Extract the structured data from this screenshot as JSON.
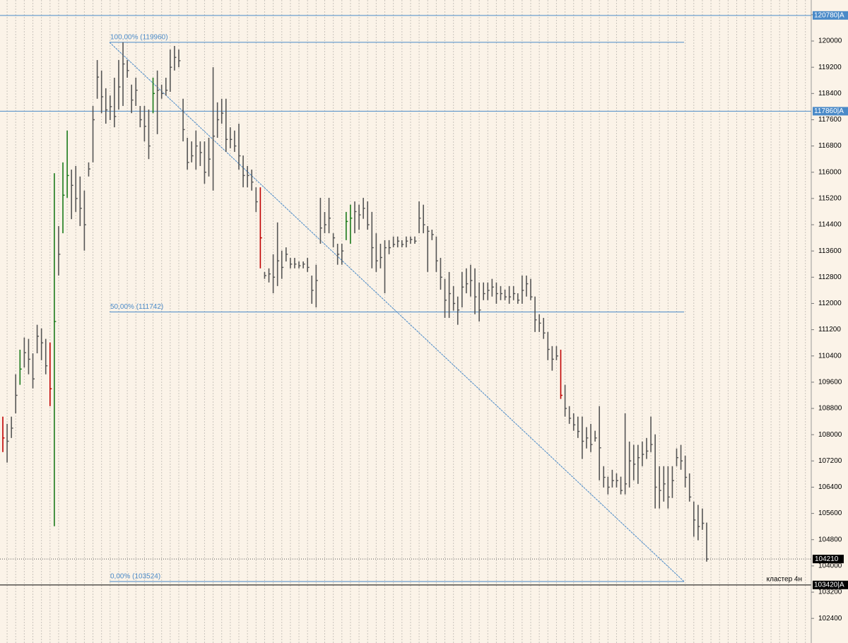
{
  "chart_data": {
    "type": "hlc",
    "ylim": [
      101650,
      121250
    ],
    "yticks": [
      102400,
      103200,
      104000,
      104800,
      105600,
      106400,
      107200,
      108000,
      108800,
      109600,
      110400,
      111200,
      112000,
      112800,
      113600,
      114400,
      115200,
      116000,
      116800,
      117600,
      118400,
      119200,
      120000,
      120800
    ],
    "background": "#fbf3e8",
    "grid": true,
    "bars": [
      [
        108550,
        107470,
        107900
      ],
      [
        108330,
        107150,
        107800
      ],
      [
        108550,
        107900,
        108200
      ],
      [
        109840,
        108650,
        109200
      ],
      [
        110590,
        109520,
        110000
      ],
      [
        110960,
        110050,
        110500
      ],
      [
        110920,
        109840,
        110300
      ],
      [
        110480,
        109410,
        109700
      ],
      [
        111350,
        110480,
        111000
      ],
      [
        111240,
        110270,
        110800
      ],
      [
        110920,
        109840,
        110100
      ],
      [
        110810,
        108870,
        109400
      ],
      [
        115970,
        105210,
        111450
      ],
      [
        114360,
        112850,
        113500
      ],
      [
        116300,
        114140,
        115300
      ],
      [
        117270,
        115220,
        115900
      ],
      [
        116080,
        114570,
        115600
      ],
      [
        116190,
        114790,
        115200
      ],
      [
        115870,
        114360,
        114900
      ],
      [
        115440,
        113610,
        114400
      ],
      [
        116300,
        115870,
        116100
      ],
      [
        118020,
        116300,
        117600
      ],
      [
        119420,
        118240,
        118900
      ],
      [
        119100,
        117800,
        118300
      ],
      [
        118560,
        117480,
        117900
      ],
      [
        118340,
        117590,
        118000
      ],
      [
        118880,
        117370,
        117700
      ],
      [
        119420,
        117910,
        118600
      ],
      [
        119960,
        118020,
        119300
      ],
      [
        119420,
        118880,
        119100
      ],
      [
        118670,
        117800,
        118200
      ],
      [
        118880,
        118020,
        118500
      ],
      [
        118020,
        117370,
        117600
      ],
      [
        118020,
        116940,
        117400
      ],
      [
        117910,
        116400,
        116800
      ],
      [
        118880,
        117800,
        118400
      ],
      [
        119100,
        117160,
        118500
      ],
      [
        118670,
        118240,
        118400
      ],
      [
        118880,
        118340,
        118500
      ],
      [
        119740,
        118450,
        119200
      ],
      [
        119850,
        119100,
        119500
      ],
      [
        119740,
        119200,
        119400
      ],
      [
        118240,
        116940,
        117300
      ],
      [
        117050,
        116080,
        116300
      ],
      [
        116940,
        116300,
        116500
      ],
      [
        117270,
        116080,
        116800
      ],
      [
        116940,
        116190,
        116600
      ],
      [
        116940,
        115650,
        116000
      ],
      [
        117050,
        115870,
        116400
      ],
      [
        119200,
        115440,
        117100
      ],
      [
        118130,
        117050,
        117600
      ],
      [
        118240,
        117480,
        117800
      ],
      [
        118240,
        116620,
        117000
      ],
      [
        117370,
        116730,
        117000
      ],
      [
        117270,
        116620,
        116800
      ],
      [
        117480,
        116080,
        116500
      ],
      [
        116510,
        115540,
        115900
      ],
      [
        116190,
        115540,
        115900
      ],
      [
        116080,
        115440,
        115700
      ],
      [
        115540,
        114790,
        115100
      ],
      [
        115540,
        113070,
        114000
      ],
      [
        112960,
        112750,
        112850
      ],
      [
        113070,
        112640,
        112900
      ],
      [
        113500,
        112310,
        112800
      ],
      [
        114470,
        112530,
        113300
      ],
      [
        113610,
        112750,
        113100
      ],
      [
        113710,
        113280,
        113500
      ],
      [
        113390,
        113070,
        113200
      ],
      [
        113390,
        113070,
        113200
      ],
      [
        113280,
        113070,
        113150
      ],
      [
        113280,
        113070,
        113200
      ],
      [
        113390,
        112960,
        113100
      ],
      [
        112850,
        111990,
        112400
      ],
      [
        113180,
        111880,
        112700
      ],
      [
        115220,
        113820,
        114300
      ],
      [
        114790,
        114140,
        114400
      ],
      [
        115220,
        114140,
        114600
      ],
      [
        114140,
        113710,
        114000
      ],
      [
        113820,
        113180,
        113500
      ],
      [
        113820,
        113180,
        113600
      ],
      [
        114790,
        113930,
        114500
      ],
      [
        115010,
        113820,
        114600
      ],
      [
        115110,
        114140,
        114800
      ],
      [
        115010,
        114250,
        114700
      ],
      [
        115220,
        114580,
        114900
      ],
      [
        115110,
        114250,
        114400
      ],
      [
        114790,
        113070,
        113700
      ],
      [
        114140,
        112960,
        113300
      ],
      [
        113820,
        113070,
        113400
      ],
      [
        113930,
        112310,
        113700
      ],
      [
        113930,
        113500,
        113700
      ],
      [
        114040,
        113710,
        113800
      ],
      [
        114040,
        113710,
        113900
      ],
      [
        113930,
        113710,
        113800
      ],
      [
        114040,
        113710,
        113900
      ],
      [
        114040,
        113820,
        113950
      ],
      [
        114040,
        113820,
        113900
      ],
      [
        115110,
        114140,
        114600
      ],
      [
        115010,
        114140,
        114400
      ],
      [
        114360,
        112960,
        114200
      ],
      [
        114250,
        113930,
        114100
      ],
      [
        114040,
        112960,
        113300
      ],
      [
        113390,
        112420,
        112800
      ],
      [
        112750,
        111560,
        112100
      ],
      [
        112960,
        111560,
        112300
      ],
      [
        112530,
        111780,
        112000
      ],
      [
        112210,
        111350,
        111800
      ],
      [
        112960,
        111880,
        112500
      ],
      [
        113070,
        112310,
        112600
      ],
      [
        113180,
        112210,
        112700
      ],
      [
        113070,
        111670,
        112200
      ],
      [
        112640,
        111450,
        111800
      ],
      [
        112640,
        112100,
        112300
      ],
      [
        112640,
        112100,
        112400
      ],
      [
        112750,
        112210,
        112500
      ],
      [
        112640,
        111990,
        112300
      ],
      [
        112530,
        112100,
        112300
      ],
      [
        112420,
        112100,
        112200
      ],
      [
        112530,
        111990,
        112200
      ],
      [
        112530,
        112100,
        112300
      ],
      [
        112310,
        111990,
        112100
      ],
      [
        112850,
        111990,
        112400
      ],
      [
        112850,
        112210,
        112600
      ],
      [
        112750,
        112100,
        112200
      ],
      [
        112210,
        111130,
        111500
      ],
      [
        111670,
        111130,
        111400
      ],
      [
        111560,
        110920,
        111100
      ],
      [
        111130,
        110270,
        110600
      ],
      [
        110700,
        109950,
        110300
      ],
      [
        110700,
        110270,
        110400
      ],
      [
        110590,
        109090,
        109200
      ],
      [
        109520,
        108550,
        108800
      ],
      [
        108870,
        108330,
        108500
      ],
      [
        108650,
        108120,
        108300
      ],
      [
        108550,
        107900,
        108100
      ],
      [
        108550,
        107260,
        107800
      ],
      [
        108230,
        107580,
        107900
      ],
      [
        108330,
        107470,
        107700
      ],
      [
        108120,
        107790,
        107900
      ],
      [
        108870,
        106610,
        107600
      ],
      [
        107040,
        106390,
        106700
      ],
      [
        106720,
        106180,
        106400
      ],
      [
        106930,
        106390,
        106600
      ],
      [
        106820,
        106390,
        106600
      ],
      [
        106720,
        106180,
        106300
      ],
      [
        108650,
        106180,
        106500
      ],
      [
        107790,
        106390,
        107200
      ],
      [
        107690,
        106610,
        107100
      ],
      [
        107690,
        106500,
        107300
      ],
      [
        107790,
        107040,
        107400
      ],
      [
        107900,
        107260,
        107500
      ],
      [
        108550,
        107470,
        107700
      ],
      [
        108010,
        105750,
        106400
      ],
      [
        107040,
        105750,
        106300
      ],
      [
        107040,
        105960,
        106500
      ],
      [
        107040,
        105750,
        106100
      ],
      [
        107040,
        106070,
        106600
      ],
      [
        107580,
        107040,
        107300
      ],
      [
        107690,
        106930,
        107200
      ],
      [
        107360,
        106390,
        106700
      ],
      [
        106820,
        105960,
        106100
      ],
      [
        105960,
        104890,
        105400
      ],
      [
        105860,
        104780,
        105200
      ],
      [
        105750,
        105100,
        105300
      ],
      [
        105320,
        104130,
        104210
      ]
    ],
    "colors": [
      "#c00000",
      "#555555",
      "#555555",
      "#555555",
      "#1a7a1a",
      "#555555",
      "#555555",
      "#555555",
      "#555555",
      "#555555",
      "#555555",
      "#c00000",
      "#1a7a1a",
      "#555555",
      "#1a7a1a",
      "#1a7a1a",
      "#555555",
      "#555555",
      "#555555",
      "#555555",
      "#555555",
      "#555555",
      "#555555",
      "#555555",
      "#555555",
      "#555555",
      "#555555",
      "#555555",
      "#555555",
      "#555555",
      "#555555",
      "#555555",
      "#555555",
      "#555555",
      "#555555",
      "#1a7a1a",
      "#555555",
      "#555555",
      "#555555",
      "#555555",
      "#555555",
      "#555555",
      "#555555",
      "#555555",
      "#555555",
      "#555555",
      "#555555",
      "#555555",
      "#555555",
      "#555555",
      "#555555",
      "#555555",
      "#555555",
      "#555555",
      "#555555",
      "#555555",
      "#555555",
      "#555555",
      "#555555",
      "#555555",
      "#c00000",
      "#555555",
      "#555555",
      "#555555",
      "#555555",
      "#555555",
      "#555555",
      "#555555",
      "#555555",
      "#555555",
      "#555555",
      "#555555",
      "#555555",
      "#555555",
      "#555555",
      "#555555",
      "#555555",
      "#555555",
      "#555555",
      "#555555",
      "#1a7a1a",
      "#1a7a1a",
      "#555555",
      "#555555",
      "#555555",
      "#555555",
      "#555555",
      "#555555",
      "#555555",
      "#555555",
      "#555555",
      "#555555",
      "#555555",
      "#555555",
      "#555555",
      "#555555",
      "#555555",
      "#555555",
      "#555555",
      "#555555",
      "#555555",
      "#555555",
      "#555555",
      "#555555",
      "#555555",
      "#555555",
      "#555555",
      "#555555",
      "#555555",
      "#555555",
      "#555555",
      "#555555",
      "#555555",
      "#555555",
      "#555555",
      "#555555",
      "#555555",
      "#555555",
      "#555555",
      "#555555",
      "#555555",
      "#555555",
      "#555555",
      "#555555",
      "#555555",
      "#555555",
      "#555555",
      "#555555",
      "#555555",
      "#555555",
      "#c00000",
      "#555555",
      "#555555",
      "#555555",
      "#555555",
      "#555555",
      "#555555",
      "#555555",
      "#555555",
      "#555555",
      "#555555",
      "#555555",
      "#555555",
      "#555555",
      "#555555",
      "#555555",
      "#555555",
      "#555555",
      "#555555",
      "#555555",
      "#555555",
      "#555555",
      "#555555",
      "#555555",
      "#555555",
      "#555555",
      "#555555",
      "#555555",
      "#555555",
      "#555555",
      "#555555",
      "#555555",
      "#555555",
      "#555555",
      "#555555"
    ],
    "fib_levels": [
      {
        "value": 119960,
        "label": "100,00% (119960)"
      },
      {
        "value": 111742,
        "label": "50,00% (111742)"
      },
      {
        "value": 103524,
        "label": "0,00% (103524)"
      }
    ],
    "fib_color": "#4a8ac8",
    "price_lines": [
      {
        "value": 120780,
        "label": "120780|A",
        "color": "#4a8ac8"
      },
      {
        "value": 117860,
        "label": "117860|A",
        "color": "#4a8ac8"
      },
      {
        "value": 103420,
        "label": "103420|A",
        "color": "#000000"
      }
    ],
    "last_price": {
      "value": 104210,
      "label": "104210"
    },
    "annotation": "кластер 4н"
  }
}
